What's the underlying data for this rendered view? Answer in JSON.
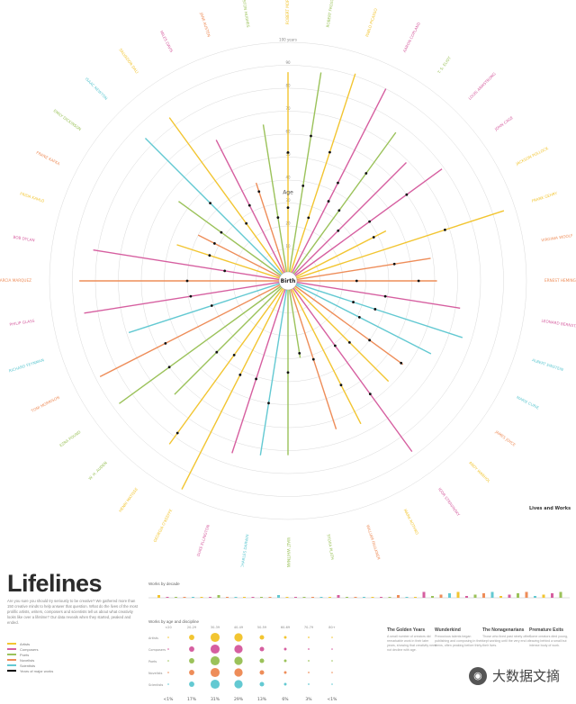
{
  "title": "Lifelines",
  "intro_text": "Are you sure you should try seriously to be creative? We gathered more than 150 creative minds to help answer that question. What do the lives of the most prolific artists, writers, composers and scientists tell us about what creativity looks like over a lifetime? Our data reveals when they started, peaked and ended.",
  "center_label": "Birth",
  "axis_title": "Age",
  "top_marker": "100 years",
  "legend": [
    {
      "label": "Artists",
      "color": "#f2c531"
    },
    {
      "label": "Composers",
      "color": "#d65fa0"
    },
    {
      "label": "Poets",
      "color": "#9bc25a"
    },
    {
      "label": "Novelists",
      "color": "#ee8d59"
    },
    {
      "label": "Scientists",
      "color": "#63c9d2"
    },
    {
      "label": "Years of major works",
      "color": "#000000"
    }
  ],
  "corner_label": "Lives and Works",
  "works_by_decade_label": "Works by decade",
  "works_by_age_label": "Works by age and discipline",
  "age_percentages": [
    "<1%",
    "17%",
    "31%",
    "29%",
    "13%",
    "6%",
    "3%",
    "<1%"
  ],
  "age_columns": [
    "<20",
    "20-29",
    "30-39",
    "40-49",
    "50-59",
    "60-69",
    "70-79",
    "80+"
  ],
  "columns": [
    {
      "title": "The Golden Years",
      "body": "A small number of creators did remarkable work in their later years, showing that creativity need not decline with age."
    },
    {
      "title": "Wunderkind",
      "body": "Precocious talents began publishing and composing in their teens, often peaking before thirty."
    },
    {
      "title": "The Nonagenarians",
      "body": "Those who lived past ninety often kept working until the very end of their lives."
    },
    {
      "title": "Premature Exits",
      "body": "Some creators died young, leaving behind a small but intense body of work."
    }
  ],
  "watermark": "大数据文摘",
  "chart_data": {
    "type": "radial",
    "title": "Lifelines",
    "axis_label": "Age",
    "rmax": 100,
    "ring_ticks": [
      10,
      20,
      30,
      40,
      50,
      60,
      70,
      80,
      90,
      100
    ],
    "ring_tick_labels": [
      "10",
      "20",
      "30",
      "40",
      "50",
      "60",
      "70",
      "80",
      "90",
      "100 years"
    ],
    "disciplines": [
      "Artists",
      "Composers",
      "Poets",
      "Novelists",
      "Scientists"
    ],
    "discipline_colors": {
      "Artists": "#f2c531",
      "Composers": "#d65fa0",
      "Poets": "#9bc25a",
      "Novelists": "#ee8d59",
      "Scientists": "#63c9d2"
    },
    "people": [
      {
        "name": "ROBERT MORRIS",
        "discipline": "Artists",
        "lifespan": 87,
        "works": [
          28,
          52
        ]
      },
      {
        "name": "ROBERT FROST",
        "discipline": "Poets",
        "lifespan": 88,
        "works": [
          38,
          60
        ]
      },
      {
        "name": "PABLO PICASSO",
        "discipline": "Artists",
        "lifespan": 91,
        "works": [
          25,
          55
        ]
      },
      {
        "name": "AARON COPLAND",
        "discipline": "Composers",
        "lifespan": 90,
        "works": [
          35,
          44
        ]
      },
      {
        "name": "T. S. ELIOT",
        "discipline": "Poets",
        "lifespan": 76,
        "works": [
          34,
          54
        ]
      },
      {
        "name": "LOUIS ARMSTRONG",
        "discipline": "Composers",
        "lifespan": 69,
        "works": [
          27
        ]
      },
      {
        "name": "JOHN CAGE",
        "discipline": "Composers",
        "lifespan": 79,
        "works": [
          40,
          60
        ]
      },
      {
        "name": "JACKSON POLLOCK",
        "discipline": "Artists",
        "lifespan": 44,
        "works": [
          38
        ]
      },
      {
        "name": "FRANK GEHRY",
        "discipline": "Artists",
        "lifespan": 95,
        "works": [
          68
        ]
      },
      {
        "name": "VIRGINIA WOOLF",
        "discipline": "Novelists",
        "lifespan": 59,
        "works": [
          43
        ]
      },
      {
        "name": "ERNEST HEMINGWAY",
        "discipline": "Novelists",
        "lifespan": 61,
        "works": [
          26,
          53
        ]
      },
      {
        "name": "LEONARD BERNSTEIN",
        "discipline": "Composers",
        "lifespan": 72,
        "works": [
          39
        ]
      },
      {
        "name": "ALBERT EINSTEIN",
        "discipline": "Scientists",
        "lifespan": 76,
        "works": [
          26,
          36
        ]
      },
      {
        "name": "MARIE CURIE",
        "discipline": "Scientists",
        "lifespan": 66,
        "works": [
          31
        ]
      },
      {
        "name": "JAMES JOYCE",
        "discipline": "Novelists",
        "lifespan": 58,
        "works": [
          40,
          57
        ]
      },
      {
        "name": "ANDY WARHOL",
        "discipline": "Artists",
        "lifespan": 58,
        "works": [
          34
        ]
      },
      {
        "name": "IGOR STRAVINSKY",
        "discipline": "Composers",
        "lifespan": 88,
        "works": [
          31,
          57
        ]
      },
      {
        "name": "MARK ROTHKO",
        "discipline": "Artists",
        "lifespan": 66,
        "works": [
          47
        ]
      },
      {
        "name": "WILLIAM FAULKNER",
        "discipline": "Novelists",
        "lifespan": 64,
        "works": [
          32
        ]
      },
      {
        "name": "SYLVIA PLATH",
        "discipline": "Poets",
        "lifespan": 30,
        "works": [
          28
        ]
      },
      {
        "name": "WALT WHITMAN",
        "discipline": "Poets",
        "lifespan": 72,
        "works": [
          36
        ]
      },
      {
        "name": "CHARLES DARWIN",
        "discipline": "Scientists",
        "lifespan": 73,
        "works": [
          50
        ]
      },
      {
        "name": "DUKE ELLINGTON",
        "discipline": "Composers",
        "lifespan": 75,
        "works": [
          41
        ]
      },
      {
        "name": "GEORGIA O'KEEFFE",
        "discipline": "Artists",
        "lifespan": 98,
        "works": [
          42
        ]
      },
      {
        "name": "HENRI MATISSE",
        "discipline": "Artists",
        "lifespan": 84,
        "works": [
          36,
          78
        ]
      },
      {
        "name": "W. H. AUDEN",
        "discipline": "Poets",
        "lifespan": 66,
        "works": [
          40
        ]
      },
      {
        "name": "EZRA POUND",
        "discipline": "Poets",
        "lifespan": 87,
        "works": [
          60
        ]
      },
      {
        "name": "TONI MORRISON",
        "discipline": "Novelists",
        "lifespan": 88,
        "works": [
          56
        ]
      },
      {
        "name": "RICHARD FEYNMAN",
        "discipline": "Scientists",
        "lifespan": 69,
        "works": [
          31
        ]
      },
      {
        "name": "PHILIP GLASS",
        "discipline": "Composers",
        "lifespan": 86,
        "works": [
          39
        ]
      },
      {
        "name": "GABRIEL GARCIA MARQUEZ",
        "discipline": "Novelists",
        "lifespan": 87,
        "works": [
          40
        ]
      },
      {
        "name": "BOB DYLAN",
        "discipline": "Composers",
        "lifespan": 82,
        "works": [
          24
        ]
      },
      {
        "name": "FRIDA KAHLO",
        "discipline": "Artists",
        "lifespan": 47,
        "works": [
          32
        ]
      },
      {
        "name": "FRANZ KAFKA",
        "discipline": "Novelists",
        "lifespan": 40,
        "works": [
          32
        ]
      },
      {
        "name": "EMILY DICKINSON",
        "discipline": "Poets",
        "lifespan": 55,
        "works": [
          32
        ]
      },
      {
        "name": "ISAAC NEWTON",
        "discipline": "Scientists",
        "lifespan": 84,
        "works": [
          44
        ]
      },
      {
        "name": "SALVADOR DALI",
        "discipline": "Artists",
        "lifespan": 84,
        "works": [
          27
        ]
      },
      {
        "name": "MILES DAVIS",
        "discipline": "Composers",
        "lifespan": 65,
        "works": [
          33
        ]
      },
      {
        "name": "JANE AUSTEN",
        "discipline": "Novelists",
        "lifespan": 41,
        "works": [
          37
        ]
      },
      {
        "name": "LANGSTON HUGHES",
        "discipline": "Poets",
        "lifespan": 65,
        "works": [
          24
        ]
      }
    ]
  }
}
